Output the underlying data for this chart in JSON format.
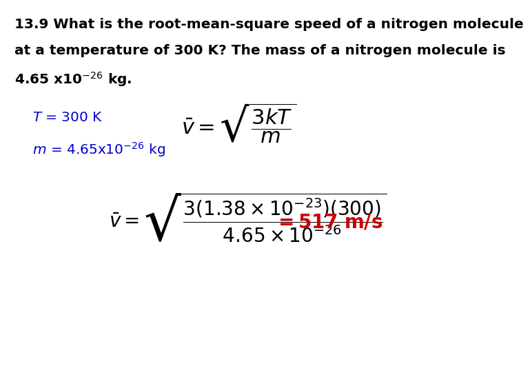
{
  "background_color": "#ffffff",
  "title_line1": "13.9 What is the root-mean-square speed of a nitrogen molecule",
  "title_line2": "at a temperature of 300 K? The mass of a nitrogen molecule is",
  "title_line3": "4.65 x10$^{-26}$ kg.",
  "given_line1": "$\\mathit{T}$ = 300 K",
  "given_line2": "$\\mathit{m}$ = 4.65x10$^{-26}$ kg",
  "formula1": "$\\bar{v} = \\sqrt{\\dfrac{3kT}{m}}$",
  "formula2": "$\\bar{v} = \\sqrt{\\dfrac{3(1.38\\times10^{-23})(300)}{4.65\\times10^{-26}}}$",
  "result_text": "$\\mathbf{= 517\\ m/s}$",
  "black_color": "#000000",
  "blue_color": "#0000cc",
  "red_color": "#cc0000",
  "title_fontsize": 14.5,
  "given_fontsize": 14.5,
  "formula1_fontsize": 22,
  "formula2_fontsize": 20,
  "result_fontsize": 20
}
